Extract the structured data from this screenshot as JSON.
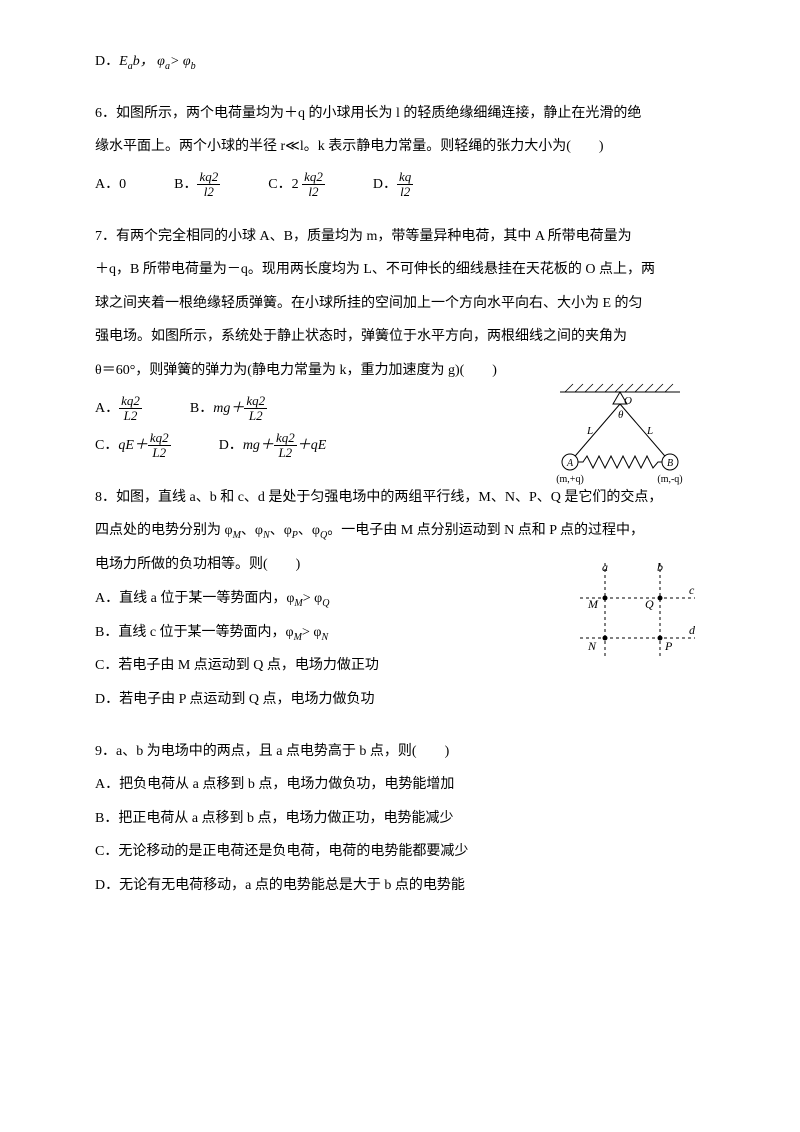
{
  "q5d": {
    "label": "D．",
    "text_html": "E<sub>a</sub><E<sub>b</sub>，&nbsp;φ<sub>a</sub>> φ<sub>b</sub>"
  },
  "q6": {
    "stem1": "6．如图所示，两个电荷量均为＋q 的小球用长为 l 的轻质绝缘细绳连接，静止在光滑的绝",
    "stem2": "缘水平面上。两个小球的半径 r≪l。k 表示静电力常量。则轻绳的张力大小为(　　)",
    "opts": {
      "A": {
        "pre": "A．",
        "text": "0"
      },
      "B": {
        "pre": "B．",
        "num": "kq2",
        "den": "l2"
      },
      "C": {
        "pre": "C．",
        "text": "2",
        "num": "kq2",
        "den": "l2"
      },
      "D": {
        "pre": "D．",
        "num": "kq",
        "den": "l2"
      }
    }
  },
  "q7": {
    "stem1": "7．有两个完全相同的小球 A、B，质量均为 m，带等量异种电荷，其中 A 所带电荷量为",
    "stem2": "＋q，B 所带电荷量为－q。现用两长度均为 L、不可伸长的细线悬挂在天花板的 O 点上，两",
    "stem3": "球之间夹着一根绝缘轻质弹簧。在小球所挂的空间加上一个方向水平向右、大小为 E 的匀",
    "stem4": "强电场。如图所示，系统处于静止状态时，弹簧位于水平方向，两根细线之间的夹角为",
    "stem5": "θ＝60°，则弹簧的弹力为(静电力常量为 k，重力加速度为 g)(　　)",
    "opts": {
      "A": {
        "pre": "A．",
        "num": "kq2",
        "den": "L2"
      },
      "B": {
        "pre": "B．",
        "text": "mg＋",
        "num": "kq2",
        "den": "L2"
      },
      "C": {
        "pre": "C．",
        "text": "qE＋",
        "num": "kq2",
        "den": "L2"
      },
      "D": {
        "pre": "D．",
        "text": "mg＋",
        "num": "kq2",
        "den": "L2",
        "tail": "＋qE"
      }
    },
    "fig": {
      "O": "O",
      "theta": "θ",
      "L": "L",
      "A": "A",
      "B": "B",
      "Alabel": "(m,+q)",
      "Blabel": "(m,-q)"
    }
  },
  "q8": {
    "stem1": "8．如图，直线 a、b 和 c、d 是处于匀强电场中的两组平行线，M、N、P、Q 是它们的交点，",
    "stem2": "四点处的电势分别为 φ<sub>M</sub>、φ<sub>N</sub>、φ<sub>P</sub>、φ<sub>Q</sub>。一电子由 M 点分别运动到 N 点和 P 点的过程中，",
    "stem3": "电场力所做的负功相等。则(　　)",
    "A": "A．直线 a 位于某一等势面内，φ<sub>M</sub>> φ<sub>Q</sub>",
    "B": "B．直线 c 位于某一等势面内，φ<sub>M</sub>> φ<sub>N</sub>",
    "C": "C．若电子由 M 点运动到 Q 点，电场力做正功",
    "D": "D．若电子由 P 点运动到 Q 点，电场力做负功",
    "fig": {
      "a": "a",
      "b": "b",
      "c": "c",
      "d": "d",
      "M": "M",
      "N": "N",
      "P": "P",
      "Q": "Q"
    }
  },
  "q9": {
    "stem": "9．a、b 为电场中的两点，且 a 点电势高于 b 点，则(　　)",
    "A": "A．把负电荷从 a 点移到 b 点，电场力做负功，电势能增加",
    "B": "B．把正电荷从 a 点移到 b 点，电场力做正功，电势能减少",
    "C": "C．无论移动的是正电荷还是负电荷，电荷的电势能都要减少",
    "D": "D．无论有无电荷移动，a 点的电势能总是大于 b 点的电势能"
  }
}
